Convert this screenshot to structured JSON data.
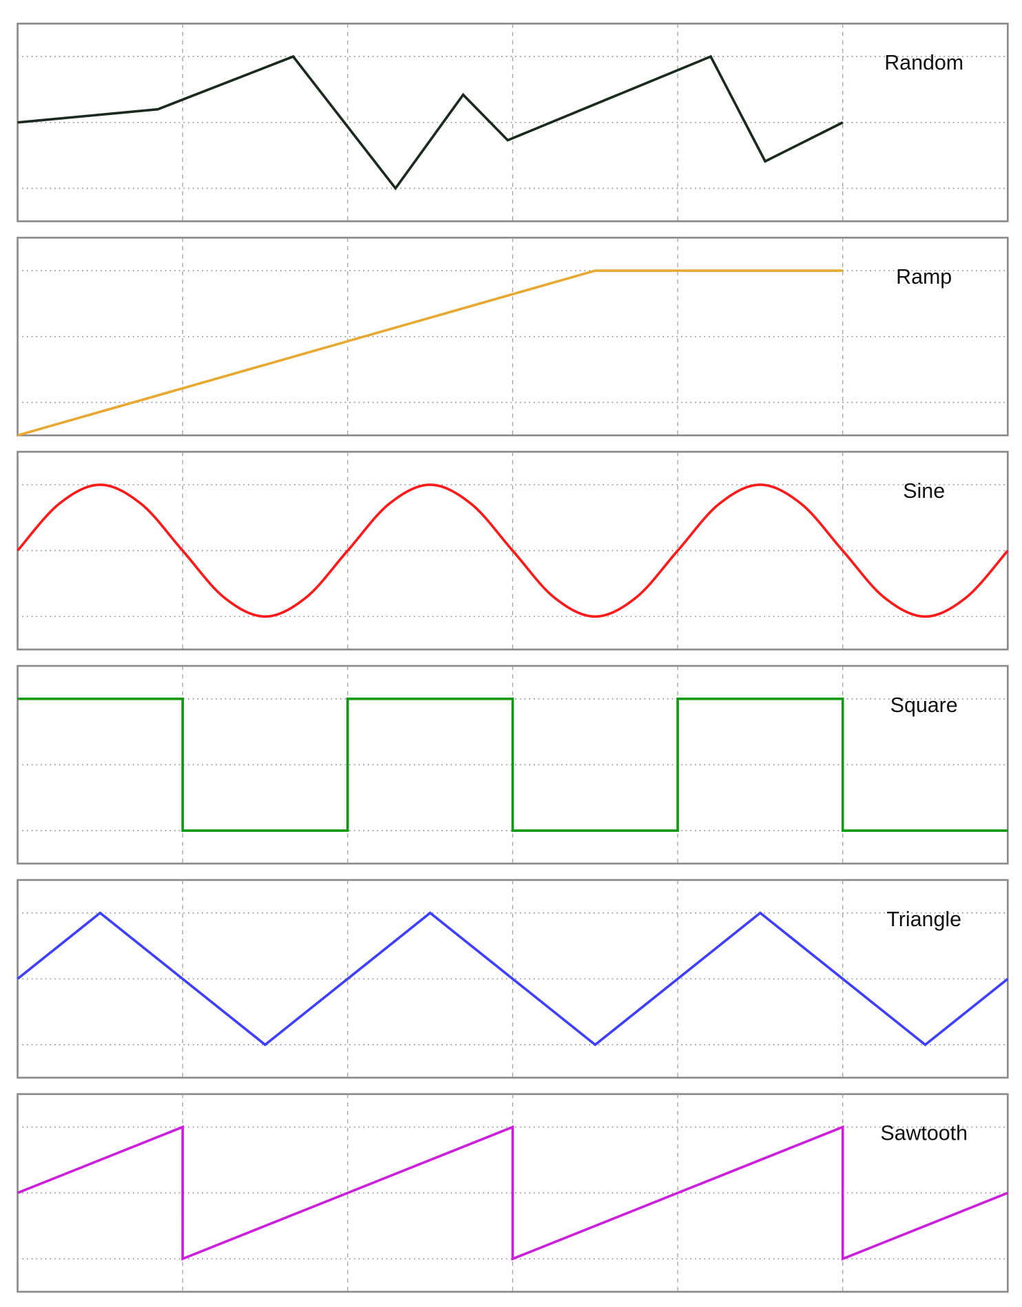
{
  "chart_data": [
    {
      "type": "line",
      "title": "Random",
      "color": "#1b2a1e",
      "xlim": [
        0,
        6
      ],
      "ylim": [
        -1.5,
        1.5
      ],
      "grid": true,
      "smooth": false,
      "x": [
        0,
        0.85,
        1.67,
        2.29,
        2.7,
        2.97,
        4.2,
        4.53,
        5
      ],
      "y": [
        0,
        0.2,
        1,
        -1,
        0.42,
        -0.27,
        1,
        -0.59,
        0
      ]
    },
    {
      "type": "line",
      "title": "Ramp",
      "color": "#e8a933",
      "xlim": [
        0,
        6
      ],
      "ylim": [
        -1.5,
        1.5
      ],
      "grid": true,
      "smooth": false,
      "x": [
        0,
        3.5,
        5
      ],
      "y": [
        -1.5,
        1,
        1
      ]
    },
    {
      "type": "line",
      "title": "Sine",
      "color": "#ff1a1a",
      "xlim": [
        0,
        6
      ],
      "ylim": [
        -1.5,
        1.5
      ],
      "grid": true,
      "smooth": true,
      "x": [
        0,
        0.25,
        0.5,
        0.75,
        1,
        1.25,
        1.5,
        1.75,
        2,
        2.25,
        2.5,
        2.75,
        3,
        3.25,
        3.5,
        3.75,
        4,
        4.25,
        4.5,
        4.75,
        5,
        5.25,
        5.5,
        5.75,
        6
      ],
      "y": [
        0,
        0.707,
        1,
        0.707,
        0,
        -0.707,
        -1,
        -0.707,
        0,
        0.707,
        1,
        0.707,
        0,
        -0.707,
        -1,
        -0.707,
        0,
        0.707,
        1,
        0.707,
        0,
        -0.707,
        -1,
        -0.707,
        0
      ]
    },
    {
      "type": "line",
      "title": "Square",
      "color": "#119a11",
      "xlim": [
        0,
        6
      ],
      "ylim": [
        -1.5,
        1.5
      ],
      "grid": true,
      "smooth": false,
      "x": [
        0,
        1,
        1,
        2,
        2,
        3,
        3,
        4,
        4,
        5,
        5,
        6
      ],
      "y": [
        1,
        1,
        -1,
        -1,
        1,
        1,
        -1,
        -1,
        1,
        1,
        -1,
        -1
      ]
    },
    {
      "type": "line",
      "title": "Triangle",
      "color": "#3f3fff",
      "xlim": [
        0,
        6
      ],
      "ylim": [
        -1.5,
        1.5
      ],
      "grid": true,
      "smooth": false,
      "x": [
        0,
        0.5,
        1.5,
        2.5,
        3.5,
        4.5,
        5.5,
        6
      ],
      "y": [
        0,
        1,
        -1,
        1,
        -1,
        1,
        -1,
        0
      ]
    },
    {
      "type": "line",
      "title": "Sawtooth",
      "color": "#cc1fdc",
      "xlim": [
        0,
        6
      ],
      "ylim": [
        -1.5,
        1.5
      ],
      "grid": true,
      "smooth": false,
      "x": [
        0,
        1,
        1,
        3,
        3,
        5,
        5,
        6
      ],
      "y": [
        0,
        1,
        -1,
        1,
        -1,
        1,
        -1,
        0
      ]
    }
  ]
}
